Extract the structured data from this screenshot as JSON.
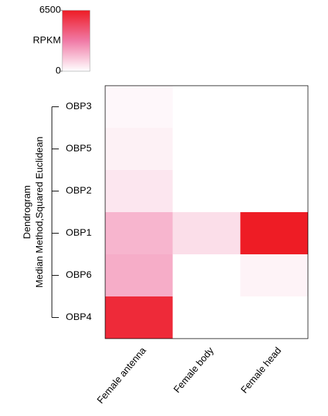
{
  "chart_data": {
    "type": "heatmap",
    "rows": [
      "OBP3",
      "OBP5",
      "OBP2",
      "OBP1",
      "OBP6",
      "OBP4"
    ],
    "columns": [
      "Female antenna",
      "Female body",
      "Female head"
    ],
    "values": [
      [
        200,
        0,
        0
      ],
      [
        350,
        0,
        0
      ],
      [
        600,
        0,
        0
      ],
      [
        1800,
        800,
        6500
      ],
      [
        2000,
        0,
        300
      ],
      [
        6000,
        0,
        0
      ]
    ],
    "zlim": [
      0,
      6500
    ],
    "zticks": [
      0,
      6500
    ],
    "colorbar_label": "RPKM",
    "colors": [
      "#ffffff",
      "#f07aa6",
      "#ee1c25"
    ],
    "ylabel": [
      "Dendrogram",
      "Median Method,Squared Euclidean"
    ]
  }
}
